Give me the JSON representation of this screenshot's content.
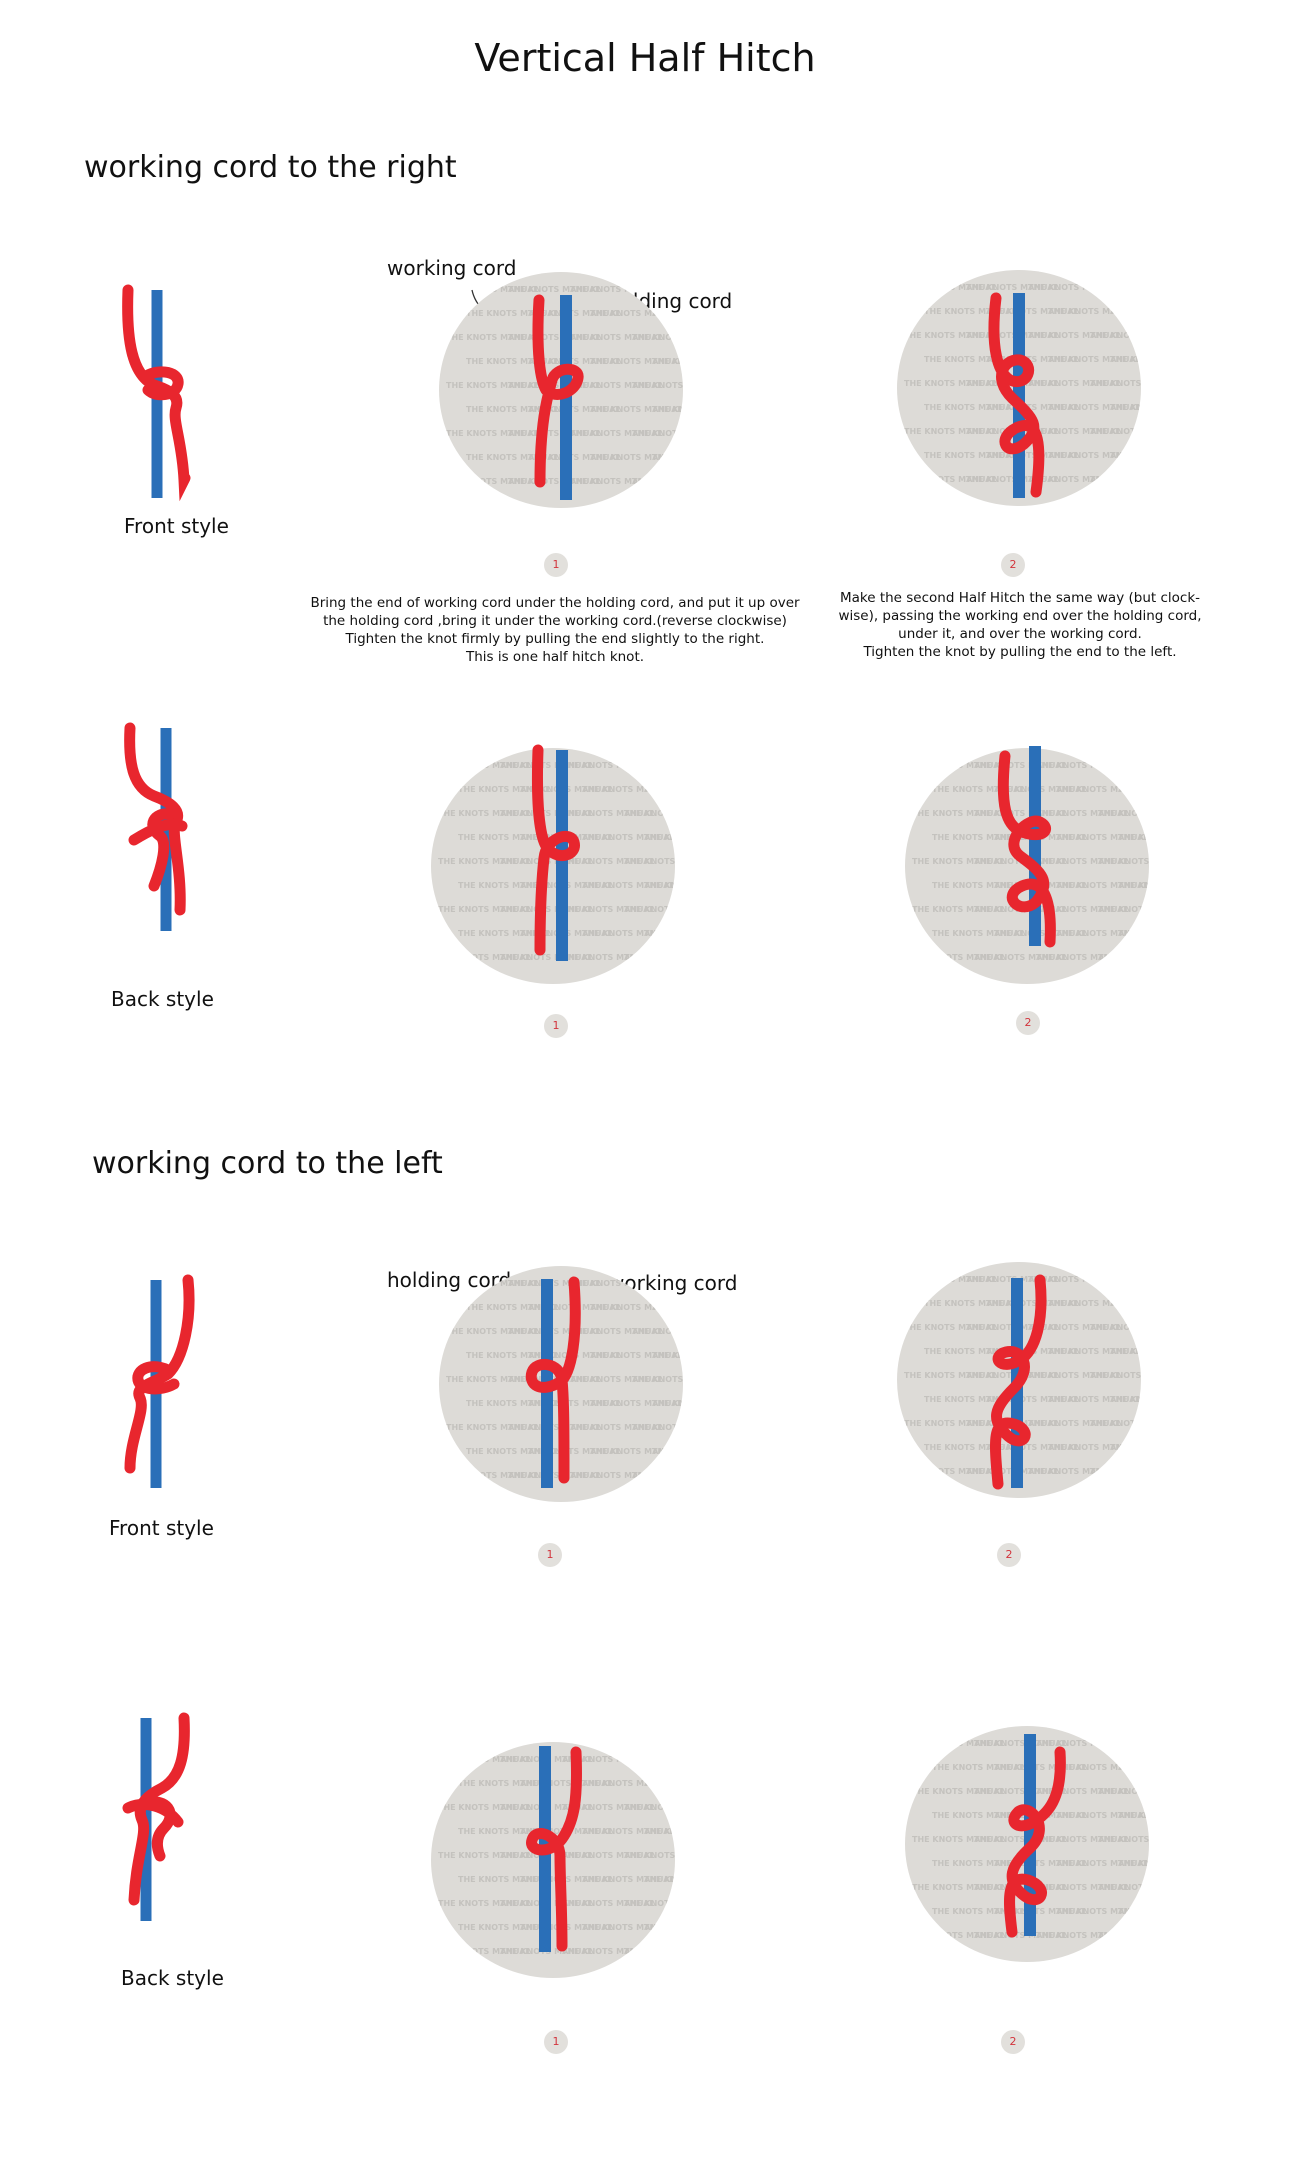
{
  "title": "Vertical Half Hitch",
  "colors": {
    "working_cord": "#e8262e",
    "holding_cord": "#2a6fb8",
    "circle": "#dddbd7"
  },
  "watermark": "THE KNOTS MANUAL",
  "sections": [
    {
      "heading": "working cord to the right",
      "front": {
        "label": "Front style",
        "callouts": {
          "first": "working cord",
          "second": "holding cord"
        },
        "steps": [
          {
            "number": "1",
            "description": [
              "Bring the end of working cord under the holding cord, and put it up over",
              "the holding cord ,bring it under the working cord.(reverse clockwise)",
              "Tighten the knot firmly by pulling the end slightly to the right.",
              "This is one half hitch knot."
            ]
          },
          {
            "number": "2",
            "description": [
              "Make the second Half Hitch the same way (but clock-",
              "wise), passing the working end over the holding cord,",
              "under it, and over the working cord.",
              "Tighten the knot by pulling the end to the left."
            ]
          }
        ]
      },
      "back": {
        "label": "Back style",
        "steps": [
          {
            "number": "1"
          },
          {
            "number": "2"
          }
        ]
      }
    },
    {
      "heading": "working cord to the left",
      "front": {
        "label": "Front style",
        "callouts": {
          "first": "holding cord",
          "second": "working cord"
        },
        "steps": [
          {
            "number": "1"
          },
          {
            "number": "2"
          }
        ]
      },
      "back": {
        "label": "Back style",
        "steps": [
          {
            "number": "1"
          },
          {
            "number": "2"
          }
        ]
      }
    }
  ]
}
